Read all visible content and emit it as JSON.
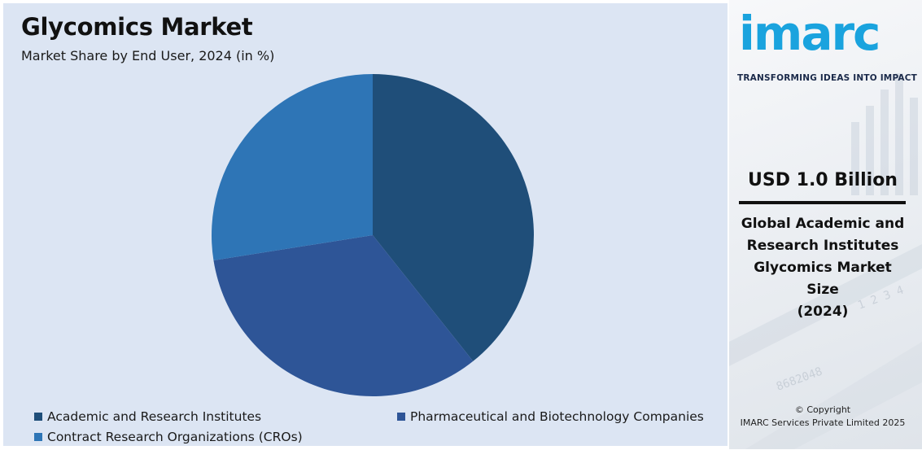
{
  "header": {
    "title": "Glycomics Market",
    "subtitle": "Market Share by End User, 2024 (in %)"
  },
  "chart_data": {
    "type": "pie",
    "title": "Glycomics Market",
    "subtitle": "Market Share by End User, 2024 (in %)",
    "categories": [
      "Academic and Research Institutes",
      "Pharmaceutical and Biotechnology Companies",
      "Contract Research Organizations (CROs)"
    ],
    "values": [
      39.3,
      33.2,
      27.5
    ],
    "colors": [
      "#1f4e79",
      "#2e5597",
      "#2e75b6"
    ],
    "legend_position": "bottom",
    "start_angle": "12 o'clock, clockwise"
  },
  "sidebar": {
    "logo_text": "imarc",
    "tagline": "TRANSFORMING IDEAS INTO IMPACT",
    "market_size": "USD 1.0 Billion",
    "market_desc_lines": [
      "Global Academic and",
      "Research Institutes",
      "Glycomics Market",
      "Size",
      "(2024)"
    ],
    "copyright_line1": "© Copyright",
    "copyright_line2": "IMARC Services Private Limited 2025",
    "logo_color": "#1aa3de"
  }
}
